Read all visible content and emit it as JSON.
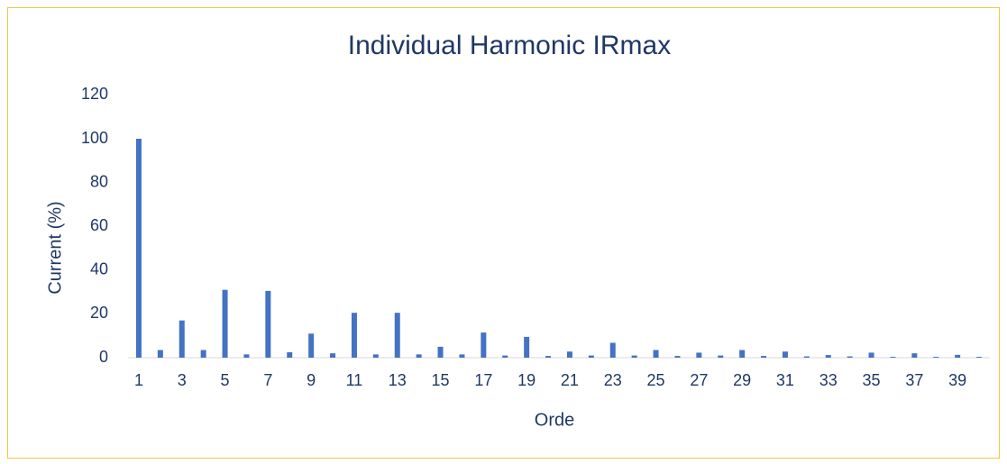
{
  "chart_data": {
    "type": "bar",
    "title": "Individual Harmonic IRmax",
    "x_label": "Orde",
    "y_label": "Current (%)",
    "categories": [
      1,
      null,
      3,
      null,
      5,
      null,
      7,
      null,
      9,
      null,
      11,
      null,
      13,
      null,
      15,
      null,
      17,
      null,
      19,
      null,
      21,
      null,
      23,
      null,
      25,
      null,
      27,
      null,
      29,
      null,
      31,
      null,
      33,
      null,
      35,
      null,
      37,
      null,
      39,
      null
    ],
    "values": [
      100,
      3.5,
      17,
      3.5,
      31,
      1.5,
      30.5,
      2.5,
      11,
      2,
      20.5,
      1.5,
      20.5,
      1.5,
      5,
      1.5,
      11.5,
      1,
      9.5,
      0.8,
      2.8,
      1,
      6.8,
      1,
      3.5,
      0.8,
      2.3,
      1,
      3.5,
      0.8,
      2.8,
      0.6,
      1.2,
      0.6,
      2.3,
      0.4,
      2,
      0.4,
      1.3,
      0.4
    ],
    "color": "#4472c4",
    "ylim": [
      0,
      120
    ],
    "yticks": [
      0,
      20,
      40,
      60,
      80,
      100,
      120
    ],
    "grid": false
  }
}
